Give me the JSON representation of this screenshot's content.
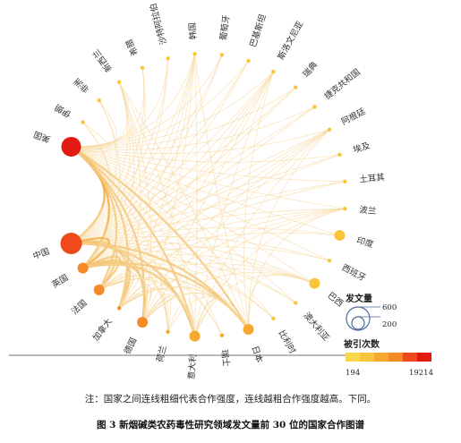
{
  "chart_data": {
    "type": "chord",
    "nodes": [
      {
        "name": "美国",
        "size": "largest",
        "citation_level": 5
      },
      {
        "name": "伊朗",
        "size": "small",
        "citation_level": 1
      },
      {
        "name": "非洲",
        "size": "small",
        "citation_level": 1
      },
      {
        "name": "新西兰",
        "size": "small",
        "citation_level": 1
      },
      {
        "name": "希腊",
        "size": "small",
        "citation_level": 1
      },
      {
        "name": "沙特阿拉伯",
        "size": "small",
        "citation_level": 1
      },
      {
        "name": "韩国",
        "size": "small",
        "citation_level": 1
      },
      {
        "name": "葡萄牙",
        "size": "small",
        "citation_level": 1
      },
      {
        "name": "巴基斯坦",
        "size": "small",
        "citation_level": 1
      },
      {
        "name": "斯洛文尼亚",
        "size": "small",
        "citation_level": 1
      },
      {
        "name": "瑞典",
        "size": "small",
        "citation_level": 1
      },
      {
        "name": "捷克共和国",
        "size": "small",
        "citation_level": 1
      },
      {
        "name": "阿根廷",
        "size": "small",
        "citation_level": 1
      },
      {
        "name": "埃及",
        "size": "small",
        "citation_level": 1
      },
      {
        "name": "土耳其",
        "size": "small",
        "citation_level": 1
      },
      {
        "name": "波兰",
        "size": "small",
        "citation_level": 1
      },
      {
        "name": "印度",
        "size": "medium",
        "citation_level": 1
      },
      {
        "name": "西班牙",
        "size": "small",
        "citation_level": 1
      },
      {
        "name": "巴西",
        "size": "medium",
        "citation_level": 1
      },
      {
        "name": "澳大利亚",
        "size": "small",
        "citation_level": 1
      },
      {
        "name": "比利时",
        "size": "small",
        "citation_level": 1
      },
      {
        "name": "日本",
        "size": "medium",
        "citation_level": 2
      },
      {
        "name": "瑞士",
        "size": "small",
        "citation_level": 2
      },
      {
        "name": "意大利",
        "size": "medium",
        "citation_level": 2
      },
      {
        "name": "荷兰",
        "size": "small",
        "citation_level": 2
      },
      {
        "name": "德国",
        "size": "medium",
        "citation_level": 3
      },
      {
        "name": "加拿大",
        "size": "small",
        "citation_level": 3
      },
      {
        "name": "法国",
        "size": "medium",
        "citation_level": 3
      },
      {
        "name": "英国",
        "size": "medium",
        "citation_level": 3
      },
      {
        "name": "中国",
        "size": "large",
        "citation_level": 4
      }
    ],
    "legend": {
      "size_title": "发文量",
      "size_values": [
        "600",
        "200"
      ],
      "color_title": "被引次数",
      "color_min": "194",
      "color_max": "19214",
      "colors": [
        "#f7d84a",
        "#f8c53a",
        "#f7a82e",
        "#f58a26",
        "#f04a1c",
        "#e31a14"
      ]
    }
  },
  "note": "注：国家之间连线粗细代表合作强度，连线越粗合作强度越高。下同。",
  "caption": "图 3  新烟碱类农药毒性研究领域发文量前 30 位的国家合作图谱"
}
